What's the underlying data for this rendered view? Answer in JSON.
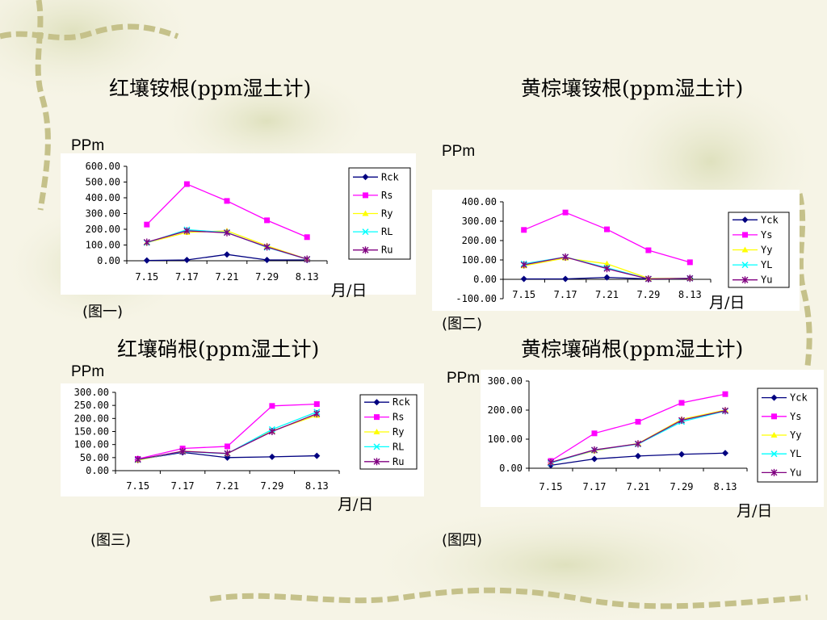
{
  "colors": {
    "ck": "#000080",
    "s": "#ff00ff",
    "y": "#ffff00",
    "L": "#00ffff",
    "u": "#800080"
  },
  "chart_data": [
    {
      "type": "line",
      "title": "红壤铵根(ppm湿土计)",
      "ylabel": "PPm",
      "xlabel": "月/日",
      "caption": "(图一)",
      "categories": [
        "7.15",
        "7.17",
        "7.21",
        "7.29",
        "8.13"
      ],
      "ylim": [
        0,
        600
      ],
      "yticks": [
        "0.00",
        "100.00",
        "200.00",
        "300.00",
        "400.00",
        "500.00",
        "600.00"
      ],
      "series": [
        {
          "name": "Rck",
          "marker": "diamond",
          "values": [
            2,
            5,
            40,
            5,
            5
          ]
        },
        {
          "name": "Rs",
          "marker": "square",
          "values": [
            230,
            487,
            380,
            257,
            150
          ]
        },
        {
          "name": "Ry",
          "marker": "triangle",
          "values": [
            115,
            180,
            190,
            95,
            10
          ]
        },
        {
          "name": "RL",
          "marker": "x",
          "values": [
            115,
            197,
            180,
            85,
            10
          ]
        },
        {
          "name": "Ru",
          "marker": "star",
          "values": [
            118,
            190,
            178,
            88,
            10
          ]
        }
      ]
    },
    {
      "type": "line",
      "title": "黄棕壤铵根(ppm湿土计)",
      "ylabel": "PPm",
      "xlabel": "月/日",
      "caption": "(图二)",
      "categories": [
        "7.15",
        "7.17",
        "7.21",
        "7.29",
        "8.13"
      ],
      "ylim": [
        -100,
        400
      ],
      "yticks": [
        "-100.00",
        "0.00",
        "100.00",
        "200.00",
        "300.00",
        "400.00"
      ],
      "series": [
        {
          "name": "Yck",
          "marker": "diamond",
          "values": [
            2,
            2,
            10,
            2,
            5
          ]
        },
        {
          "name": "Ys",
          "marker": "square",
          "values": [
            255,
            345,
            258,
            150,
            88
          ]
        },
        {
          "name": "Yy",
          "marker": "triangle",
          "values": [
            70,
            110,
            80,
            5,
            5
          ]
        },
        {
          "name": "YL",
          "marker": "x",
          "values": [
            80,
            115,
            60,
            2,
            5
          ]
        },
        {
          "name": "Yu",
          "marker": "star",
          "values": [
            75,
            115,
            55,
            2,
            5
          ]
        }
      ]
    },
    {
      "type": "line",
      "title": "红壤硝根(ppm湿土计)",
      "ylabel": "PPm",
      "xlabel": "月/日",
      "caption": "(图三)",
      "categories": [
        "7.15",
        "7.17",
        "7.21",
        "7.29",
        "8.13"
      ],
      "ylim": [
        0,
        300
      ],
      "yticks": [
        "0.00",
        "50.00",
        "100.00",
        "150.00",
        "200.00",
        "250.00",
        "300.00"
      ],
      "series": [
        {
          "name": "Rck",
          "marker": "diamond",
          "values": [
            42,
            70,
            50,
            53,
            57
          ]
        },
        {
          "name": "Rs",
          "marker": "square",
          "values": [
            45,
            85,
            93,
            248,
            255
          ]
        },
        {
          "name": "Ry",
          "marker": "triangle",
          "values": [
            40,
            75,
            65,
            152,
            212
          ]
        },
        {
          "name": "RL",
          "marker": "x",
          "values": [
            42,
            73,
            65,
            158,
            225
          ]
        },
        {
          "name": "Ru",
          "marker": "star",
          "values": [
            43,
            74,
            66,
            150,
            218
          ]
        }
      ]
    },
    {
      "type": "line",
      "title": "黄棕壤硝根(ppm湿土计)",
      "ylabel": "PPm",
      "xlabel": "月/日",
      "caption": "(图四)",
      "categories": [
        "7.15",
        "7.17",
        "7.21",
        "7.29",
        "8.13"
      ],
      "ylim": [
        0,
        300
      ],
      "yticks": [
        "0.00",
        "100.00",
        "200.00",
        "300.00"
      ],
      "series": [
        {
          "name": "Yck",
          "marker": "diamond",
          "values": [
            10,
            32,
            42,
            48,
            52
          ]
        },
        {
          "name": "Ys",
          "marker": "square",
          "values": [
            25,
            120,
            160,
            225,
            255
          ]
        },
        {
          "name": "Yy",
          "marker": "triangle",
          "values": [
            20,
            60,
            85,
            168,
            200
          ]
        },
        {
          "name": "YL",
          "marker": "x",
          "values": [
            18,
            62,
            83,
            160,
            197
          ]
        },
        {
          "name": "Yu",
          "marker": "star",
          "values": [
            20,
            63,
            84,
            165,
            198
          ]
        }
      ]
    }
  ]
}
